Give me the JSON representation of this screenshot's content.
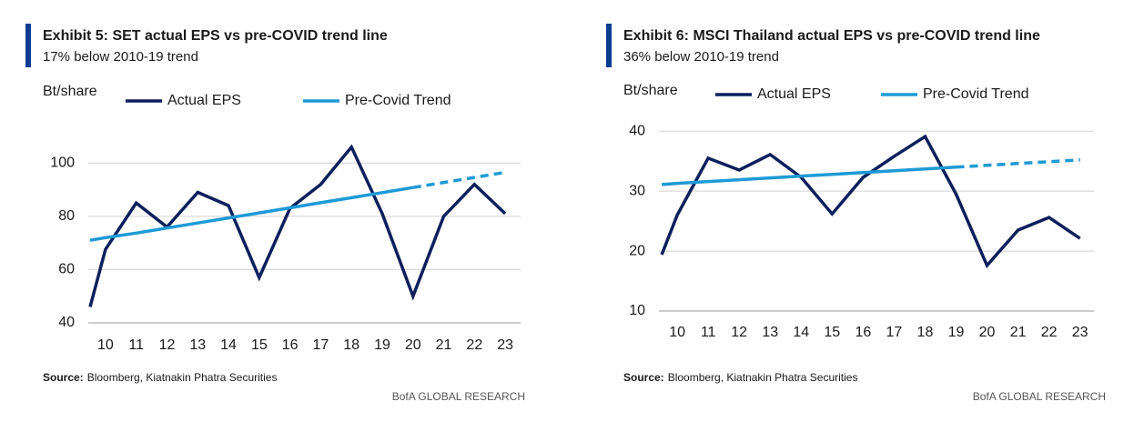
{
  "chart_data": [
    {
      "type": "line",
      "title": "Exhibit 5: SET actual EPS vs pre-COVID trend line",
      "subtitle": "17% below 2010-19 trend",
      "y_label": "Bt/share",
      "x": [
        9.5,
        10,
        11,
        12,
        13,
        14,
        15,
        16,
        17,
        18,
        19,
        20,
        21,
        22,
        23
      ],
      "xlim": [
        9.44,
        23.5
      ],
      "xticks": [
        10,
        11,
        12,
        13,
        14,
        15,
        16,
        17,
        18,
        19,
        20,
        21,
        22,
        23
      ],
      "ylim": [
        40,
        110
      ],
      "yticks": [
        40,
        60,
        80,
        100
      ],
      "grid": true,
      "dash_after_x": 20,
      "series": [
        {
          "name": "Actual EPS",
          "color": "#0b1f5c",
          "values": [
            46,
            67.6,
            85,
            76,
            89,
            84,
            57,
            83,
            92,
            106,
            81,
            50,
            80,
            92,
            81
          ]
        },
        {
          "name": "Pre-Covid Trend",
          "color": "#1e9ad6",
          "values": [
            71,
            72,
            73.7,
            75.6,
            77.5,
            79.4,
            81.3,
            83.2,
            85.1,
            87,
            88.9,
            90.8,
            92.7,
            94.6,
            96.5
          ]
        }
      ],
      "source_label": "Source:",
      "source": "Bloomberg, Kiatnakin Phatra Securities",
      "footer": "BofA GLOBAL RESEARCH"
    },
    {
      "type": "line",
      "title": "Exhibit 6: MSCI Thailand actual EPS vs pre-COVID trend line",
      "subtitle": "36% below 2010-19 trend",
      "y_label": "Bt/share",
      "x": [
        9.5,
        10,
        11,
        12,
        13,
        14,
        15,
        16,
        17,
        18,
        19,
        20,
        21,
        22,
        23
      ],
      "xlim": [
        9.41,
        23.45
      ],
      "xticks": [
        10,
        11,
        12,
        13,
        14,
        15,
        16,
        17,
        18,
        19,
        20,
        21,
        22,
        23
      ],
      "ylim": [
        10,
        42
      ],
      "yticks": [
        10,
        20,
        30,
        40
      ],
      "grid": true,
      "dash_after_x": 19,
      "series": [
        {
          "name": "Actual EPS",
          "color": "#0b1f5c",
          "values": [
            19.4,
            26,
            35.5,
            33.5,
            36.1,
            32.3,
            26.2,
            32.3,
            35.8,
            39.1,
            29.5,
            17.6,
            23.5,
            25.6,
            22.1
          ]
        },
        {
          "name": "Pre-Covid Trend",
          "color": "#1e9ad6",
          "values": [
            31.1,
            31.3,
            31.6,
            31.9,
            32.2,
            32.5,
            32.8,
            33.1,
            33.4,
            33.7,
            34.0,
            34.3,
            34.6,
            34.9,
            35.2
          ]
        }
      ],
      "source_label": "Source:",
      "source": "Bloomberg, Kiatnakin Phatra Securities",
      "footer": "BofA GLOBAL RESEARCH"
    }
  ]
}
